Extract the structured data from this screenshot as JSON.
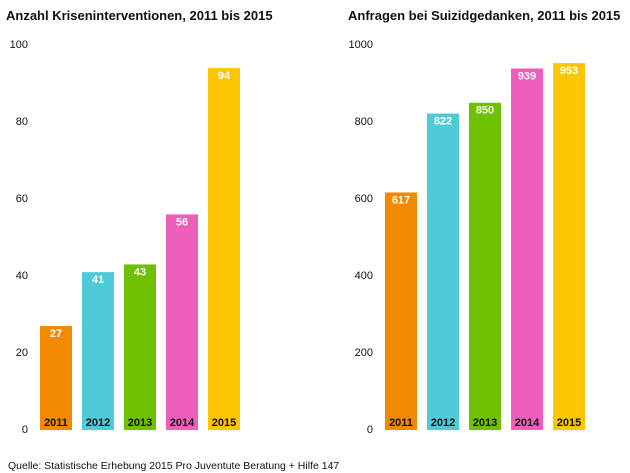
{
  "chart_data": [
    {
      "type": "bar",
      "title": "Anzahl Kriseninterventionen, 2011 bis 2015",
      "categories": [
        "2011",
        "2012",
        "2013",
        "2014",
        "2015"
      ],
      "values": [
        27,
        41,
        43,
        56,
        94
      ],
      "colors": [
        "#f28a00",
        "#4fcad8",
        "#6ec100",
        "#ed5fba",
        "#fcc700"
      ],
      "ylim": [
        0,
        100
      ],
      "yticks": [
        0,
        20,
        40,
        60,
        80,
        100
      ],
      "grid": false
    },
    {
      "type": "bar",
      "title": "Anfragen bei Suizidgedanken, 2011 bis 2015",
      "categories": [
        "2011",
        "2012",
        "2013",
        "2014",
        "2015"
      ],
      "values": [
        617,
        822,
        850,
        939,
        953
      ],
      "colors": [
        "#f28a00",
        "#4fcad8",
        "#6ec100",
        "#ed5fba",
        "#fcc700"
      ],
      "ylim": [
        0,
        1000
      ],
      "yticks": [
        0,
        200,
        400,
        600,
        800,
        1000
      ],
      "grid": false
    }
  ],
  "source": "Quelle: Statistische Erhebung 2015 Pro Juventute Beratung + Hilfe 147"
}
